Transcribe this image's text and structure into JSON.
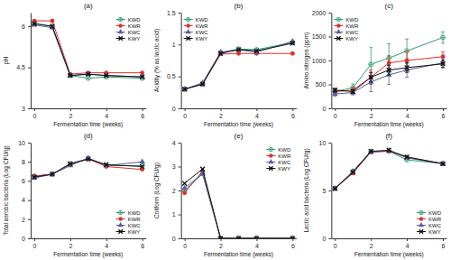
{
  "chart_data": [
    {
      "type": "line",
      "title": "(a)",
      "x_label": "Fermentation time (weeks)",
      "y_label": "pH",
      "x": [
        0,
        1,
        2,
        3,
        4,
        6
      ],
      "xlim": [
        -0.2,
        6.2
      ],
      "xticks": [
        0,
        2,
        4,
        6
      ],
      "ylim": [
        3,
        6.5
      ],
      "yticks": [
        3,
        4.5,
        6
      ],
      "legend": "upper right",
      "series": [
        {
          "name": "KWD",
          "color": "#2e9d6e",
          "marker": "circle-cross",
          "values": [
            6.1,
            6.0,
            4.2,
            4.1,
            4.15,
            4.1
          ]
        },
        {
          "name": "KWR",
          "color": "#e0302a",
          "marker": "circle",
          "values": [
            6.2,
            6.2,
            4.25,
            4.3,
            4.3,
            4.3
          ]
        },
        {
          "name": "KWC",
          "color": "#5a5ea0",
          "marker": "triangle",
          "values": [
            6.05,
            5.95,
            4.2,
            4.25,
            4.2,
            4.15
          ]
        },
        {
          "name": "KWY",
          "color": "#111111",
          "marker": "x",
          "values": [
            6.1,
            6.0,
            4.2,
            4.25,
            4.2,
            4.15
          ]
        }
      ]
    },
    {
      "type": "line",
      "title": "(b)",
      "x_label": "Fermentation time (weeks)",
      "y_label": "Acidity (% as lactic acid)",
      "x": [
        0,
        1,
        2,
        3,
        4,
        6
      ],
      "xlim": [
        -0.2,
        6.2
      ],
      "xticks": [
        0,
        2,
        4,
        6
      ],
      "ylim": [
        0,
        1.5
      ],
      "yticks": [
        0,
        0.5,
        1,
        1.5
      ],
      "legend": "upper left",
      "series": [
        {
          "name": "KWD",
          "color": "#2e9d6e",
          "marker": "circle-cross",
          "values": [
            0.3,
            0.38,
            0.87,
            0.93,
            0.92,
            1.03
          ]
        },
        {
          "name": "KWR",
          "color": "#e0302a",
          "marker": "circle",
          "values": [
            0.3,
            0.38,
            0.85,
            0.86,
            0.86,
            0.86
          ]
        },
        {
          "name": "KWC",
          "color": "#5a5ea0",
          "marker": "triangle",
          "values": [
            0.3,
            0.4,
            0.88,
            0.92,
            0.88,
            1.05
          ]
        },
        {
          "name": "KWY",
          "color": "#111111",
          "marker": "x",
          "values": [
            0.3,
            0.38,
            0.86,
            0.92,
            0.9,
            1.02
          ]
        }
      ]
    },
    {
      "type": "line",
      "title": "(c)",
      "x_label": "Fermentation time (weeks)",
      "y_label": "Amino nitrogen (ppm)",
      "x": [
        0,
        1,
        2,
        3,
        4,
        6
      ],
      "xlim": [
        -0.2,
        6.2
      ],
      "xticks": [
        0,
        2,
        4,
        6
      ],
      "ylim": [
        0,
        2000
      ],
      "yticks": [
        0,
        500,
        1000,
        1500,
        2000
      ],
      "legend": "upper left",
      "series": [
        {
          "name": "KWD",
          "color": "#2e9d6e",
          "marker": "circle-cross",
          "values": [
            350,
            430,
            920,
            1050,
            1200,
            1480
          ],
          "errors": [
            50,
            80,
            350,
            300,
            250,
            120
          ]
        },
        {
          "name": "KWR",
          "color": "#e0302a",
          "marker": "circle",
          "values": [
            350,
            380,
            650,
            950,
            1000,
            1080
          ],
          "errors": [
            40,
            60,
            150,
            150,
            200,
            100
          ]
        },
        {
          "name": "KWC",
          "color": "#5a5ea0",
          "marker": "triangle",
          "values": [
            300,
            330,
            550,
            700,
            800,
            950
          ],
          "errors": [
            50,
            50,
            200,
            200,
            150,
            100
          ]
        },
        {
          "name": "KWY",
          "color": "#111111",
          "marker": "x",
          "values": [
            380,
            350,
            650,
            800,
            850,
            930
          ],
          "errors": [
            40,
            40,
            100,
            100,
            100,
            80
          ]
        }
      ]
    },
    {
      "type": "line",
      "title": "(d)",
      "x_label": "Fermentation time (weeks)",
      "y_label": "Total aerobic bacteria (Log CFU/g)",
      "x": [
        0,
        1,
        2,
        3,
        4,
        6
      ],
      "xlim": [
        -0.2,
        6.2
      ],
      "xticks": [
        0,
        2,
        4,
        6
      ],
      "ylim": [
        0,
        10
      ],
      "yticks": [
        0,
        2,
        4,
        6,
        8,
        10
      ],
      "legend": "lower right",
      "series": [
        {
          "name": "KWD",
          "color": "#2e9d6e",
          "marker": "circle-cross",
          "values": [
            6.5,
            6.7,
            7.8,
            8.3,
            7.6,
            7.6
          ]
        },
        {
          "name": "KWR",
          "color": "#e0302a",
          "marker": "circle",
          "values": [
            6.5,
            6.7,
            7.7,
            8.3,
            7.5,
            7.2
          ]
        },
        {
          "name": "KWC",
          "color": "#5a5ea0",
          "marker": "triangle",
          "values": [
            6.3,
            6.7,
            7.6,
            8.4,
            7.6,
            8.0
          ]
        },
        {
          "name": "KWY",
          "color": "#111111",
          "marker": "x",
          "values": [
            6.4,
            6.7,
            7.8,
            8.3,
            7.7,
            7.5
          ]
        }
      ]
    },
    {
      "type": "line",
      "title": "(e)",
      "x_label": "Fermentation time (weeks)",
      "y_label": "Coliform (Log CFU/g)",
      "x": [
        0,
        1,
        2,
        3,
        4,
        6
      ],
      "xlim": [
        -0.2,
        6.2
      ],
      "xticks": [
        0,
        2,
        4,
        6
      ],
      "ylim": [
        0,
        4
      ],
      "yticks": [
        0,
        1,
        2,
        3,
        4
      ],
      "legend": "upper right",
      "series": [
        {
          "name": "KWD",
          "color": "#2e9d6e",
          "marker": "circle-cross",
          "values": [
            2.0,
            2.7,
            0,
            0,
            0,
            0
          ]
        },
        {
          "name": "KWR",
          "color": "#e0302a",
          "marker": "circle",
          "values": [
            1.9,
            2.8,
            0,
            0,
            0,
            0
          ]
        },
        {
          "name": "KWC",
          "color": "#5a5ea0",
          "marker": "triangle",
          "values": [
            2.1,
            2.7,
            0,
            0,
            0,
            0
          ]
        },
        {
          "name": "KWY",
          "color": "#111111",
          "marker": "x",
          "values": [
            2.3,
            2.9,
            0,
            0,
            0,
            0
          ]
        }
      ]
    },
    {
      "type": "line",
      "title": "(f)",
      "x_label": "Fermentation time (weeks)",
      "y_label": "Lactic acid bacteria (Log CFU/g)",
      "x": [
        0,
        1,
        2,
        3,
        4,
        6
      ],
      "xlim": [
        -0.2,
        6.2
      ],
      "xticks": [
        0,
        2,
        4,
        6
      ],
      "ylim": [
        0,
        10
      ],
      "yticks": [
        0,
        5,
        10
      ],
      "legend": "lower right",
      "series": [
        {
          "name": "KWD",
          "color": "#2e9d6e",
          "marker": "circle-cross",
          "values": [
            5.2,
            7.0,
            9.1,
            9.1,
            8.2,
            7.8
          ]
        },
        {
          "name": "KWR",
          "color": "#e0302a",
          "marker": "circle",
          "values": [
            5.2,
            6.8,
            9.0,
            9.1,
            8.5,
            7.8
          ]
        },
        {
          "name": "KWC",
          "color": "#5a5ea0",
          "marker": "triangle",
          "values": [
            5.2,
            7.0,
            9.0,
            9.2,
            8.4,
            7.8
          ]
        },
        {
          "name": "KWY",
          "color": "#111111",
          "marker": "x",
          "values": [
            5.2,
            6.9,
            9.1,
            9.2,
            8.5,
            7.8
          ]
        }
      ]
    }
  ]
}
